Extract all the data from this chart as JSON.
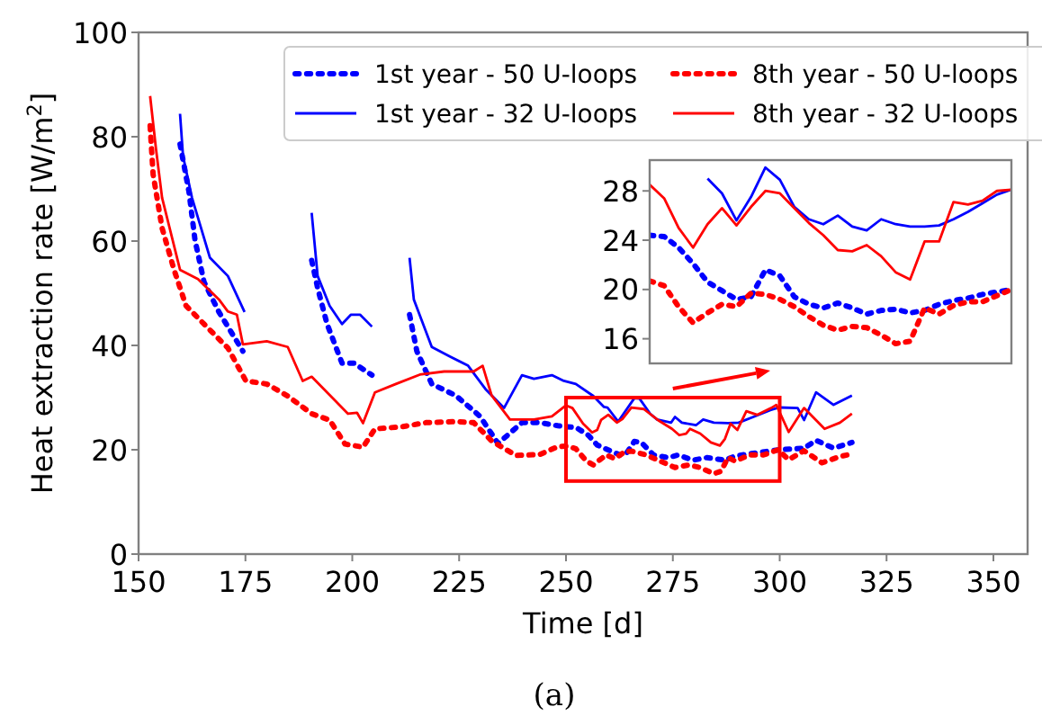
{
  "chart_data": [
    {
      "type": "line",
      "xlabel": "Time [d]",
      "ylabel": "Heat extraction rate [W/m$^{2}$]",
      "xlim": [
        150,
        358
      ],
      "ylim": [
        0,
        100
      ],
      "xticks": [
        150,
        175,
        200,
        225,
        250,
        275,
        300,
        325,
        350
      ],
      "yticks": [
        0,
        20,
        40,
        60,
        80,
        100
      ],
      "grid": false,
      "legend": "top",
      "annotations": [
        "(a)"
      ],
      "series": [
        {
          "name": "1st year - 50 U-loops",
          "color": "#0000ff",
          "line_style": "dotted",
          "x": [
            159.7,
            161.8,
            163.2,
            165.3,
            168.8,
            174.4,
            null,
            190.5,
            191.9,
            194.1,
            197.6,
            200.4,
            204.6,
            null,
            213.4,
            215.1,
            218.6,
            224.2,
            229.9,
            234.1,
            239.7,
            243.9,
            248.1,
            250.2,
            252.3,
            255.2,
            257.3,
            260.6,
            262.7,
            264.3,
            266.0,
            267.6,
            270.5,
            273.9,
            276.3,
            279.7,
            283.0,
            287.2,
            289.6,
            292.9,
            297.1,
            300,
            305.7,
            308.5,
            312.6,
            316.9
          ],
          "values": [
            78.6,
            69.4,
            60.2,
            52.2,
            46.4,
            38.9,
            null,
            56.3,
            51.0,
            44.1,
            36.6,
            36.6,
            34.3,
            null,
            45.9,
            38.9,
            32.6,
            30.4,
            26.4,
            21.2,
            25.2,
            25.2,
            24.6,
            24.4,
            24.3,
            22.8,
            20.9,
            19.7,
            19.0,
            19.5,
            21.6,
            21.4,
            19.0,
            18.5,
            19.0,
            18.0,
            18.5,
            18.0,
            18.8,
            19.2,
            19.7,
            20.0,
            20.3,
            21.8,
            20.3,
            21.4
          ]
        },
        {
          "name": "1st year - 32 U-loops",
          "color": "#0000ff",
          "line_style": "solid",
          "x": [
            159.7,
            160.4,
            162.5,
            166.7,
            170.9,
            174.8,
            null,
            190.5,
            191.9,
            194.7,
            197.6,
            199.7,
            201.8,
            204.6,
            null,
            213.4,
            214.4,
            218.6,
            222.8,
            227.1,
            231.3,
            235.5,
            239.7,
            242.5,
            246.7,
            249.5,
            252.3,
            256.4,
            258.9,
            259.7,
            262.2,
            266.0,
            267.2,
            269.7,
            271.3,
            274.6,
            275.5,
            277.1,
            280.4,
            282.1,
            284.6,
            287.9,
            290.4,
            294.5,
            297.8,
            299.9,
            304.2,
            305.7,
            308.5,
            312.6,
            316.9
          ],
          "values": [
            84.4,
            76.3,
            68.3,
            56.8,
            53.3,
            46.4,
            null,
            65.4,
            53.3,
            47.6,
            44.1,
            45.9,
            45.9,
            43.6,
            null,
            56.8,
            48.8,
            39.7,
            37.9,
            36.1,
            31.5,
            28.0,
            34.3,
            33.6,
            34.3,
            33.2,
            32.6,
            30.3,
            28.2,
            28.1,
            25.4,
            29.9,
            29.8,
            26.9,
            25.8,
            25.2,
            26.3,
            25.2,
            24.7,
            25.8,
            25.2,
            25.1,
            25.2,
            26.5,
            27.6,
            28.1,
            28.0,
            25.7,
            31.0,
            28.6,
            30.4
          ]
        },
        {
          "name": "8th year - 50 U-loops",
          "color": "#ff0000",
          "line_style": "dotted",
          "x": [
            152.7,
            153.4,
            155.5,
            158.3,
            161.1,
            165.3,
            170.9,
            175.1,
            180.0,
            184.9,
            190.5,
            194.7,
            198.3,
            202.5,
            205.3,
            211.6,
            217.2,
            224.2,
            228.4,
            232.6,
            238.3,
            243.9,
            248.1,
            250.2,
            252.3,
            254.8,
            256.4,
            259.4,
            261.4,
            263.9,
            265.5,
            268.8,
            272.1,
            275.5,
            278.8,
            281.3,
            284.6,
            286.3,
            287.9,
            289.6,
            292.9,
            296.2,
            299.6,
            302.1,
            305.7,
            309.9,
            314.1,
            316.9
          ],
          "values": [
            82.1,
            72.8,
            62.5,
            54.5,
            47.6,
            44.1,
            39.5,
            33.2,
            32.6,
            30.3,
            26.9,
            25.7,
            21.1,
            20.5,
            24.0,
            24.4,
            25.2,
            25.4,
            25.2,
            21.7,
            18.9,
            19.1,
            20.6,
            20.7,
            20.2,
            17.8,
            17.1,
            19.0,
            18.3,
            19.7,
            19.7,
            19.0,
            17.8,
            16.6,
            17.1,
            16.6,
            15.4,
            15.9,
            18.5,
            17.8,
            19.0,
            19.0,
            20.0,
            18.1,
            19.8,
            17.5,
            18.7,
            19.2
          ]
        },
        {
          "name": "8th year - 32 U-loops",
          "color": "#ff0000",
          "line_style": "solid",
          "x": [
            152.7,
            154.1,
            155.5,
            159.7,
            163.9,
            168.8,
            170.9,
            173.0,
            174.4,
            180.0,
            184.9,
            188.4,
            190.5,
            199.0,
            201.1,
            202.5,
            205.3,
            210.2,
            215.8,
            221.5,
            228.4,
            230.5,
            232.6,
            236.9,
            242.5,
            246.7,
            250.0,
            251.5,
            254.0,
            256.1,
            257.3,
            258.2,
            259.9,
            261.9,
            263.2,
            265.3,
            268.2,
            271.5,
            274.8,
            276.5,
            278.1,
            279.0,
            281.4,
            283.9,
            286.0,
            287.2,
            288.5,
            290.1,
            292.2,
            294.7,
            298.0,
            299.2,
            302.1,
            305.7,
            310.5,
            314.1,
            316.9
          ],
          "values": [
            87.8,
            77.5,
            68.3,
            54.5,
            52.7,
            48.8,
            46.5,
            45.9,
            40.2,
            40.8,
            39.7,
            33.2,
            34.0,
            26.9,
            27.1,
            25.1,
            31.0,
            32.6,
            34.4,
            35.0,
            35.0,
            36.1,
            30.4,
            25.8,
            25.8,
            26.4,
            28.5,
            28.0,
            25.0,
            23.3,
            23.8,
            25.7,
            26.7,
            25.2,
            25.9,
            28.1,
            27.8,
            25.7,
            24.0,
            22.8,
            23.1,
            24.0,
            23.1,
            21.4,
            20.8,
            22.1,
            25.0,
            23.8,
            27.4,
            26.7,
            28.0,
            28.6,
            23.4,
            28.0,
            24.0,
            25.2,
            26.9
          ]
        }
      ]
    },
    {
      "type": "line",
      "categories": [
        null,
        null,
        null,
        null,
        null,
        null,
        null,
        null,
        null,
        null,
        null,
        null,
        null,
        null,
        null,
        null,
        null,
        null,
        null,
        null,
        null,
        null,
        null,
        null,
        null,
        null
      ],
      "ylim": [
        14,
        30.5
      ],
      "yticks": [
        16,
        20,
        24,
        28
      ],
      "grid": false,
      "tick_labels": "y",
      "series": [
        {
          "color": "#0000ff",
          "line_style": "dotted",
          "values": [
            24.4,
            24.3,
            23.4,
            22.1,
            20.6,
            19.9,
            19.2,
            19.4,
            21.6,
            21.1,
            19.4,
            18.8,
            18.5,
            18.9,
            18.5,
            18.0,
            18.3,
            18.4,
            18.1,
            18.3,
            18.8,
            19.1,
            19.3,
            19.6,
            19.8,
            20.0
          ]
        },
        {
          "color": "#0000ff",
          "line_style": "solid",
          "values": [
            null,
            null,
            null,
            null,
            29.0,
            27.8,
            25.6,
            27.5,
            29.9,
            28.9,
            26.7,
            25.7,
            25.3,
            26.0,
            25.1,
            24.8,
            25.7,
            25.3,
            25.1,
            25.1,
            25.2,
            25.7,
            26.3,
            27.0,
            27.7,
            28.1
          ]
        },
        {
          "color": "#ff0000",
          "line_style": "dotted",
          "values": [
            20.7,
            20.3,
            18.6,
            17.3,
            18.1,
            18.8,
            18.6,
            19.7,
            19.6,
            19.2,
            18.6,
            17.8,
            17.1,
            16.7,
            17.0,
            16.9,
            16.3,
            15.6,
            15.8,
            18.5,
            18.0,
            18.7,
            19.0,
            19.0,
            19.5,
            20.0
          ]
        },
        {
          "color": "#ff0000",
          "line_style": "solid",
          "values": [
            28.5,
            27.4,
            25.0,
            23.4,
            25.3,
            26.6,
            25.2,
            26.7,
            28.0,
            27.8,
            26.6,
            25.4,
            24.4,
            23.2,
            23.1,
            23.6,
            22.7,
            21.4,
            20.8,
            23.9,
            23.9,
            27.1,
            26.9,
            27.2,
            28.0,
            28.1
          ]
        }
      ]
    }
  ]
}
